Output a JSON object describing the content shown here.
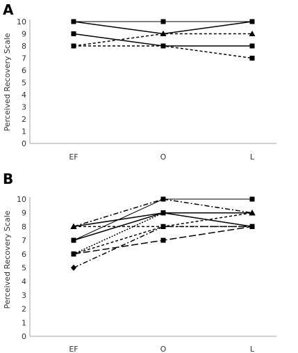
{
  "chart_data": [
    {
      "panel": "A",
      "type": "line",
      "title": "",
      "xlabel": "",
      "ylabel": "Perceived Recovery Scale",
      "categories": [
        "EF",
        "O",
        "L"
      ],
      "ylim": [
        0,
        10
      ],
      "yticks": [
        0,
        1,
        2,
        3,
        4,
        5,
        6,
        7,
        8,
        9,
        10
      ],
      "grid": false,
      "legend": "none",
      "series": [
        {
          "values": [
            10,
            10,
            10
          ],
          "style": "solid-thin",
          "markers": [
            "square",
            "square",
            "square"
          ]
        },
        {
          "values": [
            10,
            9,
            10
          ],
          "style": "solid",
          "markers": [
            "square",
            "triangle",
            "square"
          ]
        },
        {
          "values": [
            9,
            8,
            8
          ],
          "style": "solid",
          "markers": [
            "square",
            "square",
            "square"
          ]
        },
        {
          "values": [
            8,
            9,
            9
          ],
          "style": "dashed",
          "markers": [
            "square",
            "triangle",
            "triangle"
          ]
        },
        {
          "values": [
            8,
            8,
            7
          ],
          "style": "dashed",
          "markers": [
            "square",
            "square",
            "square"
          ]
        }
      ]
    },
    {
      "panel": "B",
      "type": "line",
      "title": "",
      "xlabel": "",
      "ylabel": "Perceived Recovery Scale",
      "categories": [
        "EF",
        "O",
        "L"
      ],
      "ylim": [
        0,
        10
      ],
      "yticks": [
        0,
        1,
        2,
        3,
        4,
        5,
        6,
        7,
        8,
        9,
        10
      ],
      "grid": false,
      "legend": "none",
      "series": [
        {
          "values": [
            8,
            10,
            9
          ],
          "style": "dashdot",
          "markers": [
            "triangle",
            "square",
            "triangle"
          ]
        },
        {
          "values": [
            8,
            8,
            8
          ],
          "style": "dashed",
          "markers": [
            "triangle",
            "square",
            "square"
          ]
        },
        {
          "values": [
            8,
            9,
            9
          ],
          "style": "solid",
          "markers": [
            "triangle",
            "square",
            "triangle"
          ]
        },
        {
          "values": [
            7,
            10,
            10
          ],
          "style": "solid-thin",
          "markers": [
            "square",
            "square",
            "square"
          ]
        },
        {
          "values": [
            7,
            9,
            8
          ],
          "style": "solid",
          "markers": [
            "square",
            "square",
            "square"
          ]
        },
        {
          "values": [
            6,
            9,
            9
          ],
          "style": "dotted",
          "markers": [
            "square",
            "square",
            "triangle"
          ]
        },
        {
          "values": [
            6,
            8,
            9
          ],
          "style": "dashed",
          "markers": [
            "square",
            "square",
            "triangle"
          ]
        },
        {
          "values": [
            6,
            7,
            8
          ],
          "style": "longdash",
          "markers": [
            "square",
            "square",
            "square"
          ]
        },
        {
          "values": [
            5,
            8,
            8
          ],
          "style": "dashdot",
          "markers": [
            "diamond",
            "square",
            "square"
          ]
        }
      ]
    }
  ]
}
